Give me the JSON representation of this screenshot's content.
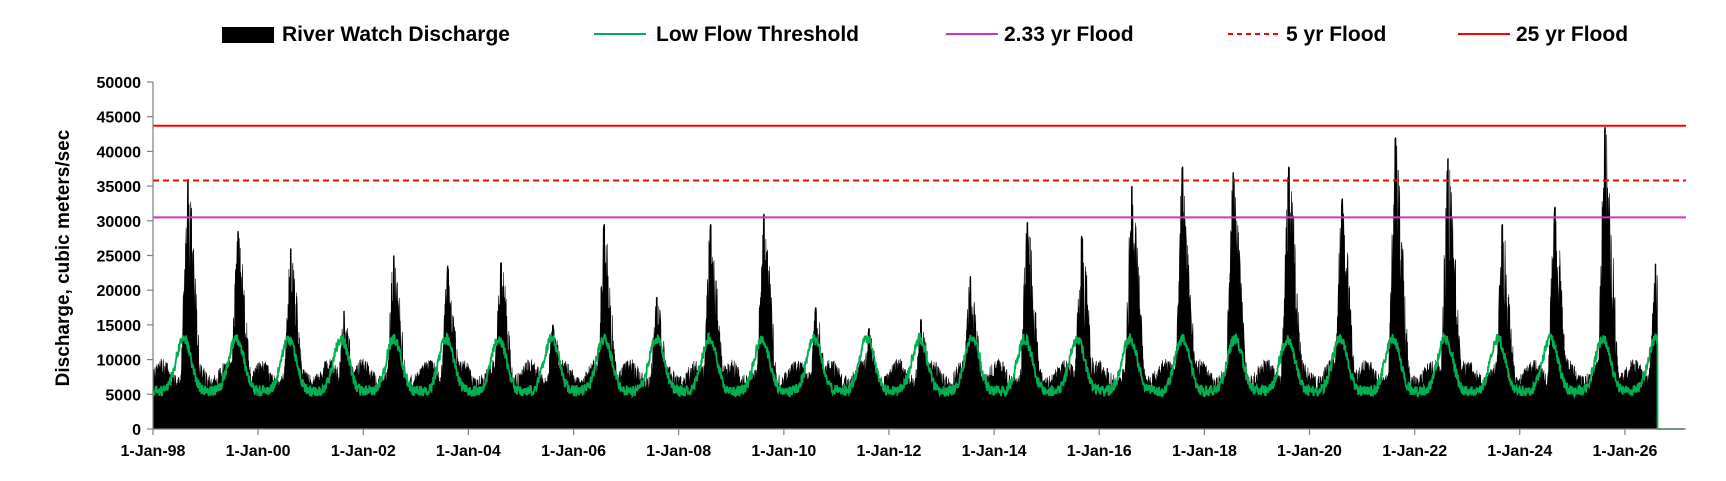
{
  "chart_data": {
    "type": "area",
    "title": "",
    "xlabel": "",
    "ylabel": "Discharge, cubic meters/sec",
    "ylim": [
      0,
      50000
    ],
    "yticks": [
      0,
      5000,
      10000,
      15000,
      20000,
      25000,
      30000,
      35000,
      40000,
      45000,
      50000
    ],
    "xlim": [
      "1998-01-01",
      "2027-03-01"
    ],
    "xtick_labels": [
      "1-Jan-98",
      "1-Jan-00",
      "1-Jan-02",
      "1-Jan-04",
      "1-Jan-06",
      "1-Jan-08",
      "1-Jan-10",
      "1-Jan-12",
      "1-Jan-14",
      "1-Jan-16",
      "1-Jan-18",
      "1-Jan-20",
      "1-Jan-22",
      "1-Jan-24",
      "1-Jan-26"
    ],
    "xtick_dates": [
      "1998-01-01",
      "2000-01-01",
      "2002-01-01",
      "2004-01-01",
      "2006-01-01",
      "2008-01-01",
      "2010-01-01",
      "2012-01-01",
      "2014-01-01",
      "2016-01-01",
      "2018-01-01",
      "2020-01-01",
      "2022-01-01",
      "2024-01-01",
      "2026-01-01"
    ],
    "grid": false,
    "legend_position": "top",
    "series": [
      {
        "name": "River Watch Discharge",
        "style": "filled-area",
        "color": "#000000",
        "annual_peaks": [
          {
            "date": "1998-09-01",
            "value": 36000
          },
          {
            "date": "1999-08-15",
            "value": 28500
          },
          {
            "date": "2000-08-15",
            "value": 26000
          },
          {
            "date": "2001-08-20",
            "value": 17000
          },
          {
            "date": "2002-08-01",
            "value": 25000
          },
          {
            "date": "2003-08-10",
            "value": 23500
          },
          {
            "date": "2004-08-15",
            "value": 24000
          },
          {
            "date": "2005-08-10",
            "value": 15000
          },
          {
            "date": "2006-08-01",
            "value": 29500
          },
          {
            "date": "2007-08-01",
            "value": 19000
          },
          {
            "date": "2008-08-10",
            "value": 29500
          },
          {
            "date": "2009-08-15",
            "value": 31000
          },
          {
            "date": "2010-08-10",
            "value": 17500
          },
          {
            "date": "2011-08-15",
            "value": 14500
          },
          {
            "date": "2012-08-10",
            "value": 15800
          },
          {
            "date": "2013-07-20",
            "value": 22000
          },
          {
            "date": "2014-08-20",
            "value": 29800
          },
          {
            "date": "2015-09-01",
            "value": 27800
          },
          {
            "date": "2016-08-15",
            "value": 35000
          },
          {
            "date": "2017-08-01",
            "value": 37800
          },
          {
            "date": "2018-07-20",
            "value": 37000
          },
          {
            "date": "2019-08-10",
            "value": 37800
          },
          {
            "date": "2020-08-15",
            "value": 33200
          },
          {
            "date": "2021-08-20",
            "value": 42000
          },
          {
            "date": "2022-08-20",
            "value": 39000
          },
          {
            "date": "2023-09-01",
            "value": 29500
          },
          {
            "date": "2024-09-01",
            "value": 32000
          },
          {
            "date": "2025-08-15",
            "value": 43500
          },
          {
            "date": "2026-08-01",
            "value": 23800
          }
        ],
        "baseline_flow": 7000,
        "last_date": "2026-08-15"
      },
      {
        "name": "Low Flow Threshold",
        "style": "line",
        "color": "#00b050",
        "seasonal_min": 4000,
        "seasonal_max": 14000,
        "end_date": "2026-08-15",
        "after_end_value": 0,
        "after_end_until": "2027-02-15"
      },
      {
        "name": "2.33 yr Flood",
        "style": "hline",
        "color": "#cc33cc",
        "value": 30500
      },
      {
        "name": "5 yr Flood",
        "style": "hline-dashed",
        "color": "#ff0000",
        "value": 35800
      },
      {
        "name": "25 yr Flood",
        "style": "hline",
        "color": "#ff0000",
        "value": 43700
      }
    ]
  }
}
